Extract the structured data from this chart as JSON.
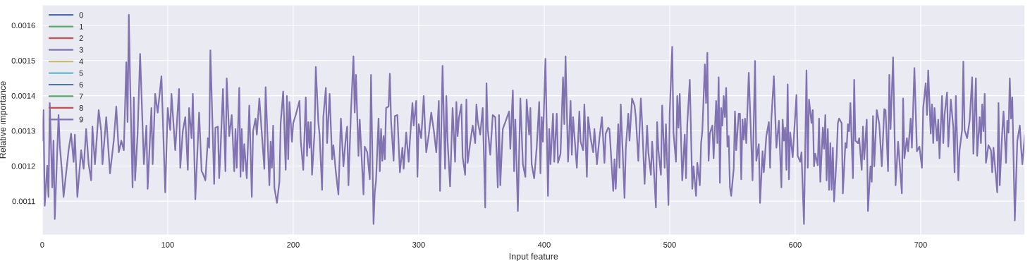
{
  "chart_data": {
    "type": "line",
    "xlabel": "Input feature",
    "ylabel": "Relative importance",
    "xlim": [
      0,
      783
    ],
    "ylim": [
      0.001004,
      0.001658
    ],
    "xticks": [
      0,
      100,
      200,
      300,
      400,
      500,
      600,
      700
    ],
    "yticks": [
      0.0011,
      0.0012,
      0.0013,
      0.0014,
      0.0015,
      0.0016
    ],
    "grid": true,
    "legend": "top left",
    "line_style": "solid",
    "marker": "none",
    "series": [
      {
        "name": "0",
        "color": "#4c72b0"
      },
      {
        "name": "1",
        "color": "#55a868"
      },
      {
        "name": "2",
        "color": "#c44e52"
      },
      {
        "name": "3",
        "color": "#8172b2"
      },
      {
        "name": "4",
        "color": "#ccb974"
      },
      {
        "name": "5",
        "color": "#64b5cd"
      },
      {
        "name": "6",
        "color": "#4c72b0"
      },
      {
        "name": "7",
        "color": "#55a868"
      },
      {
        "name": "8",
        "color": "#c44e52"
      },
      {
        "name": "9",
        "color": "#8172b2",
        "x": [
          0,
          1,
          2,
          4,
          5,
          6,
          8,
          9,
          10,
          13,
          14,
          16,
          17,
          21,
          23,
          25,
          26,
          28,
          31,
          33,
          35,
          37,
          39,
          40,
          42,
          45,
          47,
          48,
          51,
          54,
          57,
          59,
          61,
          63,
          65,
          67,
          68,
          69,
          70,
          72,
          73,
          74,
          76,
          78,
          81,
          83,
          84,
          87,
          88,
          90,
          92,
          95,
          96,
          98,
          100,
          102,
          103,
          106,
          109,
          110,
          112,
          114,
          116,
          117,
          119,
          120,
          122,
          125,
          127,
          128,
          130,
          132,
          133,
          134,
          137,
          138,
          140,
          141,
          142,
          144,
          146,
          147,
          149,
          151,
          153,
          154,
          155,
          157,
          158,
          159,
          160,
          161,
          163,
          165,
          167,
          168,
          170,
          171,
          173,
          177,
          178,
          181,
          182,
          183,
          184,
          185,
          187,
          189,
          190,
          192,
          194,
          195,
          196,
          197,
          199,
          200,
          202,
          205,
          206,
          208,
          210,
          211,
          212,
          213,
          214,
          215,
          217,
          218,
          220,
          221,
          223,
          224,
          226,
          227,
          229,
          231,
          232,
          234,
          236,
          238,
          240,
          242,
          243,
          244,
          246,
          248,
          249,
          250,
          252,
          253,
          256,
          257,
          259,
          261,
          262,
          264,
          265,
          266,
          268,
          269,
          270,
          271,
          272,
          273,
          274,
          276,
          277,
          278,
          280,
          281,
          283,
          285,
          287,
          288,
          290,
          292,
          293,
          295,
          296,
          298,
          299,
          300,
          302,
          304,
          305,
          306,
          308,
          310,
          312,
          314,
          316,
          317,
          319,
          321,
          322,
          323,
          325,
          327,
          329,
          330,
          331,
          332,
          334,
          335,
          337,
          338,
          339,
          341,
          343,
          345,
          346,
          347,
          349,
          351,
          353,
          354,
          355,
          357,
          359,
          361,
          363,
          364,
          365,
          367,
          369,
          372,
          373,
          375,
          376,
          377,
          379,
          381,
          383,
          385,
          386,
          388,
          389,
          390,
          392,
          394,
          396,
          397,
          398,
          399,
          401,
          403,
          404,
          405,
          407,
          408,
          410,
          411,
          413,
          415,
          416,
          417,
          419,
          421,
          422,
          423,
          426,
          428,
          429,
          431,
          432,
          434,
          435,
          437,
          439,
          440,
          442,
          444,
          446,
          448,
          449,
          451,
          452,
          455,
          456,
          457,
          459,
          460,
          461,
          464,
          465,
          467,
          468,
          470,
          472,
          473,
          475,
          477,
          478,
          480,
          482,
          483,
          485,
          486,
          487,
          489,
          490,
          491,
          493,
          494,
          496,
          497,
          499,
          500,
          502,
          503,
          505,
          506,
          507,
          508,
          510,
          512,
          513,
          514,
          516,
          518,
          519,
          521,
          522,
          524,
          525,
          526,
          528,
          529,
          530,
          531,
          532,
          534,
          535,
          537,
          538,
          539,
          540,
          541,
          542,
          543,
          544,
          545,
          546,
          547,
          548,
          549,
          551,
          552,
          553,
          555,
          556,
          557,
          558,
          559,
          560,
          561,
          563,
          565,
          566,
          568,
          569,
          571,
          572,
          574,
          575,
          577,
          579,
          580,
          581,
          583,
          585,
          587,
          589,
          590,
          591,
          592,
          593,
          594,
          595,
          596,
          598,
          601,
          602,
          604,
          605,
          607,
          609,
          610,
          611,
          613,
          614,
          615,
          616,
          618,
          619,
          620,
          622,
          623,
          624,
          625,
          626,
          627,
          628,
          629,
          630,
          631,
          633,
          634,
          635,
          637,
          638,
          640,
          641,
          642,
          643,
          644,
          646,
          647,
          648,
          650,
          651,
          653,
          654,
          655,
          657,
          658,
          660,
          661,
          662,
          663,
          665,
          667,
          669,
          671,
          672,
          674,
          675,
          676,
          678,
          680,
          682,
          685,
          686,
          687,
          689,
          690,
          692,
          693,
          695,
          697,
          699,
          701,
          702,
          704,
          705,
          706,
          708,
          709,
          710,
          711,
          713,
          714,
          715,
          717,
          718,
          719,
          721,
          722,
          724,
          726,
          727,
          728,
          730,
          731,
          733,
          734,
          735,
          737,
          739,
          741,
          742,
          744,
          745,
          747,
          748,
          749,
          750,
          751,
          752,
          754,
          756,
          757,
          758,
          761,
          762,
          763,
          765,
          766,
          768,
          769,
          770,
          771,
          772,
          773,
          775,
          777,
          779,
          780,
          781,
          783
        ],
        "values": [
          0.001272,
          0.001359,
          0.001087,
          0.001201,
          0.001112,
          0.001379,
          0.001139,
          0.001272,
          0.001049,
          0.001345,
          0.001259,
          0.001172,
          0.001112,
          0.001245,
          0.001292,
          0.001212,
          0.001289,
          0.001112,
          0.001245,
          0.001192,
          0.001305,
          0.001205,
          0.001159,
          0.001312,
          0.001205,
          0.001359,
          0.001299,
          0.001205,
          0.001339,
          0.001179,
          0.001272,
          0.001369,
          0.001239,
          0.001272,
          0.001245,
          0.001495,
          0.001325,
          0.00163,
          0.001445,
          0.001139,
          0.001395,
          0.001159,
          0.001292,
          0.001519,
          0.001205,
          0.001315,
          0.001135,
          0.001365,
          0.001205,
          0.001405,
          0.001352,
          0.001455,
          0.001345,
          0.001125,
          0.001365,
          0.001302,
          0.001405,
          0.001245,
          0.001419,
          0.001195,
          0.001299,
          0.001339,
          0.001189,
          0.001365,
          0.001279,
          0.001405,
          0.001105,
          0.001352,
          0.001185,
          0.001179,
          0.001159,
          0.001279,
          0.001252,
          0.001529,
          0.001149,
          0.001309,
          0.001312,
          0.001165,
          0.001239,
          0.001419,
          0.001185,
          0.001449,
          0.001285,
          0.001345,
          0.001185,
          0.001305,
          0.001195,
          0.001422,
          0.001169,
          0.001305,
          0.001185,
          0.001262,
          0.001165,
          0.001372,
          0.001112,
          0.001299,
          0.001335,
          0.001289,
          0.001392,
          0.001192,
          0.001424,
          0.001145,
          0.001269,
          0.001195,
          0.001315,
          0.001139,
          0.001095,
          0.001155,
          0.001322,
          0.001412,
          0.001189,
          0.001399,
          0.001219,
          0.001382,
          0.001269,
          0.001322,
          0.001345,
          0.001385,
          0.001272,
          0.001189,
          0.001395,
          0.001229,
          0.001325,
          0.001252,
          0.001325,
          0.001175,
          0.001295,
          0.001482,
          0.001325,
          0.001289,
          0.001132,
          0.001339,
          0.001422,
          0.001265,
          0.001405,
          0.001219,
          0.001259,
          0.001182,
          0.001119,
          0.001335,
          0.001199,
          0.001285,
          0.001312,
          0.001145,
          0.001352,
          0.001512,
          0.001352,
          0.001459,
          0.001229,
          0.001332,
          0.001119,
          0.001255,
          0.001239,
          0.001162,
          0.001459,
          0.001035,
          0.001125,
          0.001159,
          0.001335,
          0.001185,
          0.001305,
          0.001215,
          0.001285,
          0.001219,
          0.001365,
          0.001369,
          0.001462,
          0.001325,
          0.001215,
          0.001342,
          0.001345,
          0.001182,
          0.001252,
          0.001192,
          0.001295,
          0.001212,
          0.001272,
          0.001379,
          0.001315,
          0.001385,
          0.001169,
          0.001319,
          0.001279,
          0.001399,
          0.001312,
          0.001239,
          0.001289,
          0.001352,
          0.001302,
          0.001239,
          0.001385,
          0.001129,
          0.001485,
          0.001192,
          0.001399,
          0.001272,
          0.001142,
          0.001365,
          0.001212,
          0.001382,
          0.001285,
          0.001335,
          0.001375,
          0.001225,
          0.001175,
          0.001389,
          0.001209,
          0.001265,
          0.001315,
          0.001265,
          0.001375,
          0.001329,
          0.001289,
          0.001365,
          0.001082,
          0.001435,
          0.001305,
          0.001232,
          0.001345,
          0.001339,
          0.001139,
          0.001345,
          0.001145,
          0.001305,
          0.001325,
          0.001355,
          0.001249,
          0.001415,
          0.001185,
          0.001332,
          0.001072,
          0.001392,
          0.001205,
          0.001169,
          0.001389,
          0.001289,
          0.001365,
          0.001205,
          0.001165,
          0.001252,
          0.001382,
          0.001179,
          0.001339,
          0.001269,
          0.001505,
          0.001115,
          0.001305,
          0.001205,
          0.001349,
          0.001212,
          0.001349,
          0.001209,
          0.001235,
          0.001452,
          0.001319,
          0.001512,
          0.001212,
          0.001385,
          0.001232,
          0.001339,
          0.001195,
          0.001355,
          0.001269,
          0.001245,
          0.001375,
          0.001169,
          0.001339,
          0.001279,
          0.001239,
          0.001305,
          0.001205,
          0.001279,
          0.001339,
          0.001209,
          0.001292,
          0.001309,
          0.001305,
          0.001129,
          0.001219,
          0.001135,
          0.001319,
          0.001195,
          0.001375,
          0.001109,
          0.001249,
          0.001349,
          0.001272,
          0.001392,
          0.001372,
          0.001339,
          0.001215,
          0.001392,
          0.001325,
          0.001149,
          0.001315,
          0.001239,
          0.001175,
          0.001269,
          0.001215,
          0.001082,
          0.001325,
          0.001245,
          0.001175,
          0.001372,
          0.001195,
          0.001319,
          0.001089,
          0.001352,
          0.001539,
          0.001295,
          0.001212,
          0.001399,
          0.001309,
          0.001405,
          0.001159,
          0.001289,
          0.001165,
          0.001319,
          0.001445,
          0.001135,
          0.001199,
          0.001115,
          0.001209,
          0.001145,
          0.001265,
          0.001299,
          0.001489,
          0.001379,
          0.001522,
          0.001215,
          0.001292,
          0.001315,
          0.001222,
          0.001385,
          0.001265,
          0.001452,
          0.001152,
          0.001365,
          0.001315,
          0.001399,
          0.001339,
          0.001422,
          0.001255,
          0.001285,
          0.001139,
          0.001115,
          0.001192,
          0.001355,
          0.001245,
          0.001349,
          0.001349,
          0.001162,
          0.001332,
          0.001275,
          0.001335,
          0.001265,
          0.001465,
          0.001265,
          0.001159,
          0.001499,
          0.001215,
          0.001262,
          0.001095,
          0.001242,
          0.001182,
          0.001285,
          0.001325,
          0.001195,
          0.001332,
          0.001455,
          0.001252,
          0.001329,
          0.001139,
          0.001332,
          0.001272,
          0.001309,
          0.001189,
          0.001432,
          0.001162,
          0.001295,
          0.001225,
          0.001402,
          0.001229,
          0.001212,
          0.001239,
          0.001035,
          0.001472,
          0.001195,
          0.001389,
          0.001322,
          0.001359,
          0.001199,
          0.001235,
          0.001202,
          0.001335,
          0.001155,
          0.001309,
          0.001249,
          0.001345,
          0.001159,
          0.001305,
          0.001132,
          0.001265,
          0.001132,
          0.001252,
          0.001099,
          0.001225,
          0.001322,
          0.001335,
          0.001322,
          0.001122,
          0.001265,
          0.001252,
          0.001319,
          0.001299,
          0.001379,
          0.001165,
          0.001445,
          0.001272,
          0.001265,
          0.001279,
          0.001189,
          0.001312,
          0.001219,
          0.001332,
          0.001072,
          0.001199,
          0.001155,
          0.001342,
          0.001199,
          0.001359,
          0.001319,
          0.001199,
          0.001362,
          0.001359,
          0.001185,
          0.001459,
          0.001305,
          0.001509,
          0.001145,
          0.001269,
          0.001122,
          0.001392,
          0.001222,
          0.001279,
          0.001242,
          0.001335,
          0.001252,
          0.001479,
          0.001242,
          0.001255,
          0.001195,
          0.001365,
          0.001435,
          0.001345,
          0.001472,
          0.001292,
          0.001375,
          0.001265,
          0.001365,
          0.001272,
          0.001332,
          0.001222,
          0.001399,
          0.001265,
          0.001345,
          0.001409,
          0.001255,
          0.001389,
          0.001309,
          0.001182,
          0.001399,
          0.001159,
          0.001245,
          0.001302,
          0.001497,
          0.001302,
          0.001279,
          0.001329,
          0.001452,
          0.001235,
          0.001449,
          0.001229,
          0.001339,
          0.001265,
          0.001375,
          0.001299,
          0.001405,
          0.001209,
          0.001259,
          0.001245,
          0.001182,
          0.001252,
          0.001125,
          0.001379,
          0.001145,
          0.001299,
          0.001355,
          0.001209,
          0.001329,
          0.001295,
          0.001449,
          0.001335,
          0.001395,
          0.001045,
          0.001272,
          0.001315,
          0.001252,
          0.001205,
          0.001289
        ]
      }
    ]
  }
}
